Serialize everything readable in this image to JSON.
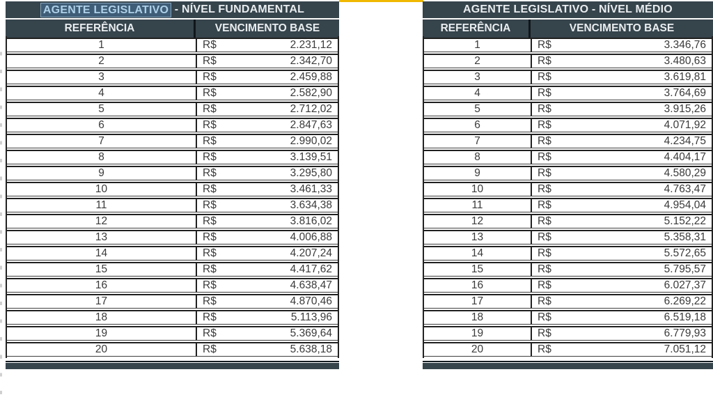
{
  "colors": {
    "header_bg": "#36444c",
    "header_text": "#e9edef",
    "highlight_bg": "#3f5d77",
    "highlight_text": "#aed0e8",
    "accent_yellow": "#f0b801",
    "body_text": "#3a3a3a"
  },
  "tables": [
    {
      "title": {
        "highlight": "AGENTE LEGISLATIVO",
        "rest": " - NÍVEL FUNDAMENTAL"
      },
      "columns": [
        "REFERÊNCIA",
        "VENCIMENTO BASE"
      ],
      "currency": "R$",
      "rows": [
        {
          "ref": "1",
          "value": "2.231,12"
        },
        {
          "ref": "2",
          "value": "2.342,70"
        },
        {
          "ref": "3",
          "value": "2.459,88"
        },
        {
          "ref": "4",
          "value": "2.582,90"
        },
        {
          "ref": "5",
          "value": "2.712,02"
        },
        {
          "ref": "6",
          "value": "2.847,63"
        },
        {
          "ref": "7",
          "value": "2.990,02"
        },
        {
          "ref": "8",
          "value": "3.139,51"
        },
        {
          "ref": "9",
          "value": "3.295,80"
        },
        {
          "ref": "10",
          "value": "3.461,33"
        },
        {
          "ref": "11",
          "value": "3.634,38"
        },
        {
          "ref": "12",
          "value": "3.816,02"
        },
        {
          "ref": "13",
          "value": "4.006,88"
        },
        {
          "ref": "14",
          "value": "4.207,24"
        },
        {
          "ref": "15",
          "value": "4.417,62"
        },
        {
          "ref": "16",
          "value": "4.638,47"
        },
        {
          "ref": "17",
          "value": "4.870,46"
        },
        {
          "ref": "18",
          "value": "5.113,96"
        },
        {
          "ref": "19",
          "value": "5.369,64"
        },
        {
          "ref": "20",
          "value": "5.638,18"
        }
      ]
    },
    {
      "title": {
        "highlight": "",
        "rest": "AGENTE LEGISLATIVO - NÍVEL MÉDIO"
      },
      "columns": [
        "REFERÊNCIA",
        "VENCIMENTO BASE"
      ],
      "currency": "R$",
      "rows": [
        {
          "ref": "1",
          "value": "3.346,76"
        },
        {
          "ref": "2",
          "value": "3.480,63"
        },
        {
          "ref": "3",
          "value": "3.619,81"
        },
        {
          "ref": "4",
          "value": "3.764,69"
        },
        {
          "ref": "5",
          "value": "3.915,26"
        },
        {
          "ref": "6",
          "value": "4.071,92"
        },
        {
          "ref": "7",
          "value": "4.234,75"
        },
        {
          "ref": "8",
          "value": "4.404,17"
        },
        {
          "ref": "9",
          "value": "4.580,29"
        },
        {
          "ref": "10",
          "value": "4.763,47"
        },
        {
          "ref": "11",
          "value": "4.954,04"
        },
        {
          "ref": "12",
          "value": "5.152,22"
        },
        {
          "ref": "13",
          "value": "5.358,31"
        },
        {
          "ref": "14",
          "value": "5.572,65"
        },
        {
          "ref": "15",
          "value": "5.795,57"
        },
        {
          "ref": "16",
          "value": "6.027,37"
        },
        {
          "ref": "17",
          "value": "6.269,22"
        },
        {
          "ref": "18",
          "value": "6.519,18"
        },
        {
          "ref": "19",
          "value": "6.779,93"
        },
        {
          "ref": "20",
          "value": "7.051,12"
        }
      ]
    }
  ]
}
